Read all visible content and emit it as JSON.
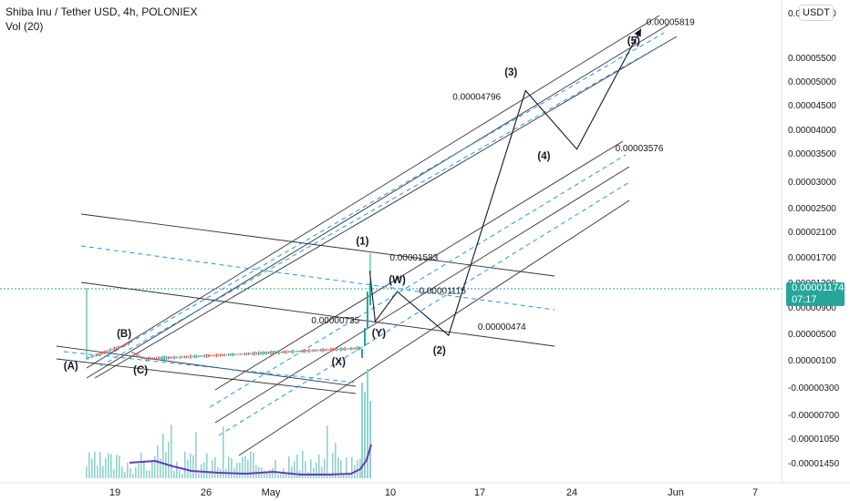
{
  "header": {
    "title": "Shiba Inu / Tether USD, 4h, POLONIEX",
    "indicator": "Vol (20)"
  },
  "currency_button": "USDT",
  "last_price": {
    "value": "0.00001174",
    "countdown": "07:17"
  },
  "colors": {
    "up": "#26a69a",
    "down": "#ef5350",
    "channel_solid": "#333333",
    "channel_dashed": "#2196f3",
    "current_price_line": "#26a69a",
    "volume_ma": "#6a3ab6",
    "volume_bar": "#8fd3ca"
  },
  "chart_data": {
    "type": "line",
    "title": "Shiba Inu / Tether USD, 4h, POLONIEX",
    "y_scale": "log",
    "y_tick_labels": [
      "0.00006000",
      "0.00005500",
      "0.00005000",
      "0.00004500",
      "0.00004000",
      "0.00003500",
      "0.00003000",
      "0.00002500",
      "0.00002100",
      "0.00001700",
      "0.00001300",
      "0.00000900",
      "0.00000500",
      "0.00000100",
      "-0.00000300",
      "-0.00000700",
      "-0.00001050",
      "-0.00001450"
    ],
    "x_tick_labels": [
      "19",
      "26",
      "May",
      "10",
      "17",
      "24",
      "Jun",
      "7"
    ],
    "grid": false,
    "wave_labels": [
      {
        "label": "(A)",
        "date": "2021-04-16",
        "price": 1.5e-06
      },
      {
        "label": "(B)",
        "date": "2021-04-20",
        "price": 3.6e-06
      },
      {
        "label": "(C)",
        "date": "2021-04-21",
        "price": 9e-07
      },
      {
        "label": "(X)",
        "date": "2021-05-07",
        "price": 1e-06
      },
      {
        "label": "(1)",
        "date": "2021-05-09",
        "price": 1.75e-05
      },
      {
        "label": "(Y)",
        "date": "2021-05-09",
        "price": 6.7e-06
      },
      {
        "label": "(W)",
        "date": "2021-05-11",
        "price": 1.2e-05
      },
      {
        "label": "(2)",
        "date": "2021-05-15",
        "price": 4.1e-06
      },
      {
        "label": "(3)",
        "date": "2021-05-21",
        "price": 5e-05
      },
      {
        "label": "(4)",
        "date": "2021-05-24",
        "price": 3.45e-05
      },
      {
        "label": "(5)",
        "date": "2021-05-29",
        "price": 5.65e-05
      }
    ],
    "price_annotations": [
      {
        "text": "0.00005819",
        "date": "2021-05-29",
        "price": 5.819e-05
      },
      {
        "text": "0.00004796",
        "date": "2021-05-21",
        "price": 4.796e-05
      },
      {
        "text": "0.00003576",
        "date": "2021-05-26",
        "price": 3.576e-05
      },
      {
        "text": "0.00001583",
        "date": "2021-05-09",
        "price": 1.583e-05
      },
      {
        "text": "0.00001115",
        "date": "2021-05-11",
        "price": 1.115e-05
      },
      {
        "text": "0.00000735",
        "date": "2021-05-09",
        "price": 7.35e-06
      },
      {
        "text": "0.00000474",
        "date": "2021-05-16",
        "price": 4.74e-06
      }
    ],
    "projected_path": [
      {
        "date": "2021-05-09",
        "price": 1.48e-05
      },
      {
        "date": "2021-05-09",
        "price": 6.8e-06
      },
      {
        "date": "2021-05-11",
        "price": 1.15e-05
      },
      {
        "date": "2021-05-15",
        "price": 4.7e-06
      },
      {
        "date": "2021-05-21",
        "price": 4.8e-05
      },
      {
        "date": "2021-05-25",
        "price": 3.58e-05
      },
      {
        "date": "2021-05-30",
        "price": 5.82e-05
      }
    ],
    "current_price": 1.174e-05
  }
}
